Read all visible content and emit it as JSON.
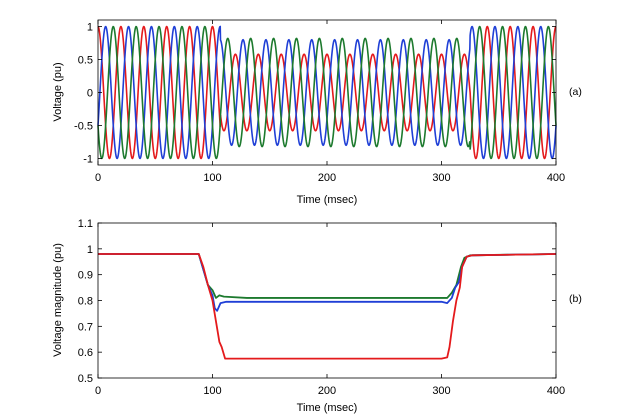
{
  "chart_data": [
    {
      "type": "line",
      "panel_tag": "(a)",
      "title": "",
      "xlabel": "Time (msec)",
      "ylabel": "Voltage (pu)",
      "xlim": [
        0,
        400
      ],
      "ylim": [
        -1.1,
        1.1
      ],
      "xticks": [
        0,
        100,
        200,
        300,
        400
      ],
      "yticks": [
        -1,
        -0.5,
        0,
        0.5,
        1
      ],
      "grid": false,
      "legend": "none",
      "frequency_hz": 50,
      "sag_interval_ms": [
        107,
        325
      ],
      "series": [
        {
          "color": "#e41a1c",
          "phase_deg": 90,
          "amplitude_normal": 1.0,
          "amplitude_sag": 0.58
        },
        {
          "color": "#1f3fd6",
          "phase_deg": -30,
          "amplitude_normal": 1.0,
          "amplitude_sag": 0.8
        },
        {
          "color": "#1d7a2e",
          "phase_deg": 210,
          "amplitude_normal": 1.0,
          "amplitude_sag": 0.82
        }
      ]
    },
    {
      "type": "line",
      "panel_tag": "(b)",
      "title": "",
      "xlabel": "Time (msec)",
      "ylabel": "Voltage magnitude (pu)",
      "xlim": [
        0,
        400
      ],
      "ylim": [
        0.5,
        1.1
      ],
      "xticks": [
        0,
        100,
        200,
        300,
        400
      ],
      "yticks": [
        0.5,
        0.6,
        0.7,
        0.8,
        0.9,
        1,
        1.1
      ],
      "grid": false,
      "legend": "none",
      "series": [
        {
          "color": "#1d7a2e",
          "x": [
            0,
            88,
            92,
            96,
            100,
            103,
            106,
            110,
            130,
            300,
            305,
            309,
            313,
            317,
            320,
            325,
            400
          ],
          "y": [
            0.98,
            0.98,
            0.92,
            0.86,
            0.84,
            0.81,
            0.82,
            0.815,
            0.81,
            0.81,
            0.81,
            0.83,
            0.86,
            0.93,
            0.965,
            0.975,
            0.98
          ]
        },
        {
          "color": "#1f3fd6",
          "x": [
            0,
            88,
            92,
            96,
            100,
            102,
            104,
            107,
            112,
            130,
            300,
            305,
            309,
            312,
            315,
            318,
            322,
            327,
            400
          ],
          "y": [
            0.98,
            0.98,
            0.92,
            0.86,
            0.82,
            0.77,
            0.76,
            0.79,
            0.795,
            0.795,
            0.795,
            0.79,
            0.81,
            0.85,
            0.87,
            0.93,
            0.97,
            0.975,
            0.98
          ]
        },
        {
          "color": "#e41a1c",
          "x": [
            0,
            88,
            92,
            96,
            100,
            103,
            106,
            108,
            111,
            130,
            300,
            305,
            307,
            310,
            313,
            316,
            318,
            322,
            327,
            400
          ],
          "y": [
            0.98,
            0.98,
            0.93,
            0.86,
            0.8,
            0.72,
            0.64,
            0.62,
            0.575,
            0.575,
            0.575,
            0.58,
            0.62,
            0.72,
            0.8,
            0.85,
            0.93,
            0.97,
            0.975,
            0.98
          ]
        }
      ]
    }
  ]
}
